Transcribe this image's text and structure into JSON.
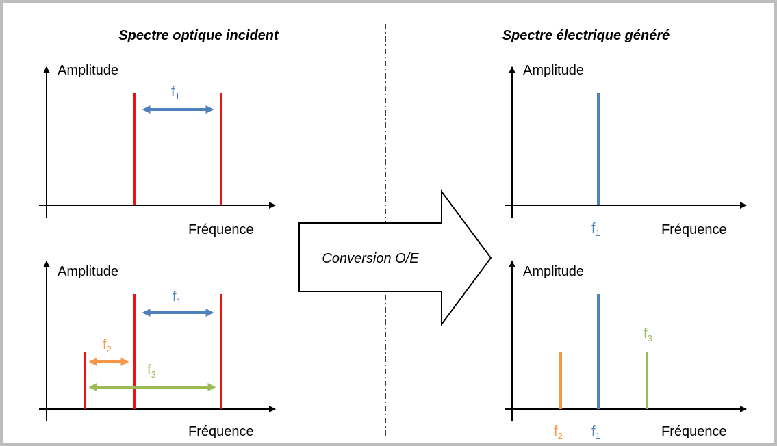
{
  "titles": {
    "left": "Spectre optique incident",
    "right": "Spectre électrique généré"
  },
  "panels": [
    {
      "y_label": "Amplitude",
      "x_label": "Fréquence",
      "labels": [
        {
          "base": "f",
          "sub": "1"
        }
      ]
    },
    {
      "y_label": "Amplitude",
      "x_label": "Fréquence",
      "labels": [
        {
          "base": "f",
          "sub": "1"
        },
        {
          "base": "f",
          "sub": "2"
        },
        {
          "base": "f",
          "sub": "3"
        }
      ]
    },
    {
      "y_label": "Amplitude",
      "x_label": "Fréquence",
      "labels": [
        {
          "base": "f",
          "sub": "1"
        }
      ]
    },
    {
      "y_label": "Amplitude",
      "x_label": "Fréquence",
      "labels": [
        {
          "base": "f",
          "sub": "2"
        },
        {
          "base": "f",
          "sub": "1"
        },
        {
          "base": "f",
          "sub": "3"
        }
      ]
    }
  ],
  "arrow_label": "Conversion O/E"
}
